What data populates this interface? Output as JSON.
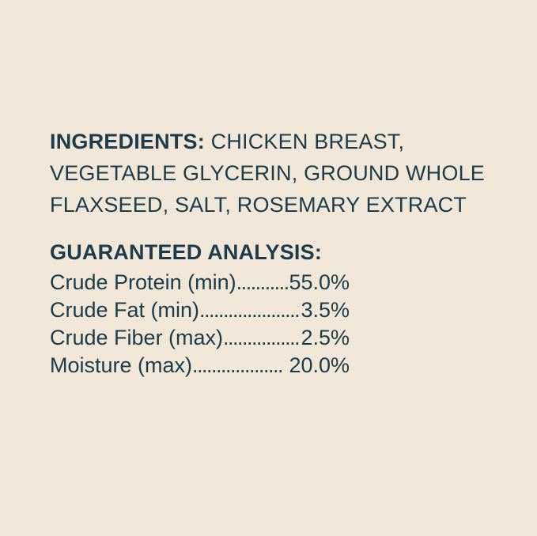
{
  "colors": {
    "background": "#f0e7d8",
    "text": "#1e3b4a"
  },
  "ingredients": {
    "label": "INGREDIENTS:",
    "line1_rest": "CHICKEN BREAST,",
    "line2": "VEGETABLE GLYCERIN, GROUND WHOLE",
    "line3": "FLAXSEED, SALT, ROSEMARY EXTRACT"
  },
  "guaranteed_analysis": {
    "heading": "GUARANTEED ANALYSIS:",
    "rows": [
      {
        "label": "Crude Protein (min)",
        "dots": "............................................................",
        "value": "55.0%"
      },
      {
        "label": "Crude Fat (min)",
        "dots": "............................................................",
        "value": "3.5%"
      },
      {
        "label": "Crude Fiber (max)",
        "dots": "............................................................",
        "value": "2.5%"
      },
      {
        "label": "Moisture (max)",
        "dots": "............................................................",
        "value": " 20.0%"
      }
    ]
  }
}
